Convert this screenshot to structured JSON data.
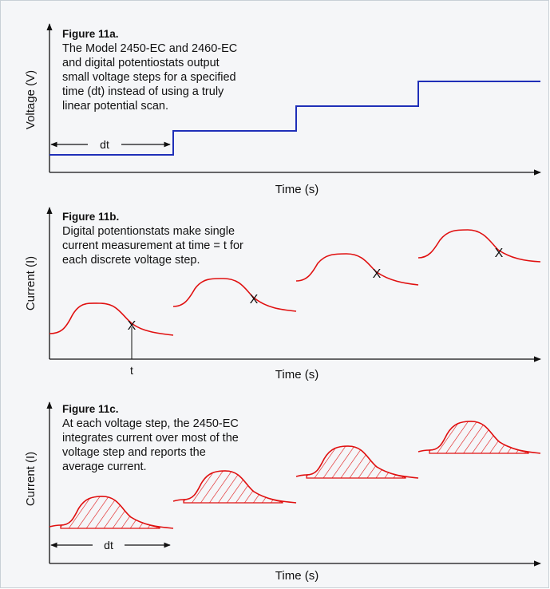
{
  "panel_a": {
    "title": "Figure 11a.",
    "caption_lines": [
      "The Model 2450-EC and 2460-EC",
      "and digital potentiostats output",
      "small voltage steps for a specified",
      "time (dt) instead of using a truly",
      "linear potential scan."
    ],
    "y_label": "Voltage (V)",
    "x_label": "Time (s)",
    "dt_label": "dt",
    "steps": 4
  },
  "panel_b": {
    "title": "Figure 11b.",
    "caption_lines": [
      "Digital potentionstats make single",
      "current measurement at time = t for",
      "each discrete voltage step."
    ],
    "y_label": "Current (I)",
    "x_label": "Time (s)",
    "t_label": "t",
    "marker": "X"
  },
  "panel_c": {
    "title": "Figure 11c.",
    "caption_lines": [
      "At each voltage step, the 2450-EC",
      "integrates current over most of the",
      "voltage step and reports the",
      "average current."
    ],
    "y_label": "Current (I)",
    "x_label": "Time (s)",
    "dt_label": "dt"
  },
  "colors": {
    "voltage_line": "#1f2fb8",
    "current_line": "#e01010",
    "axis": "#111111",
    "background": "#f5f6f8"
  }
}
